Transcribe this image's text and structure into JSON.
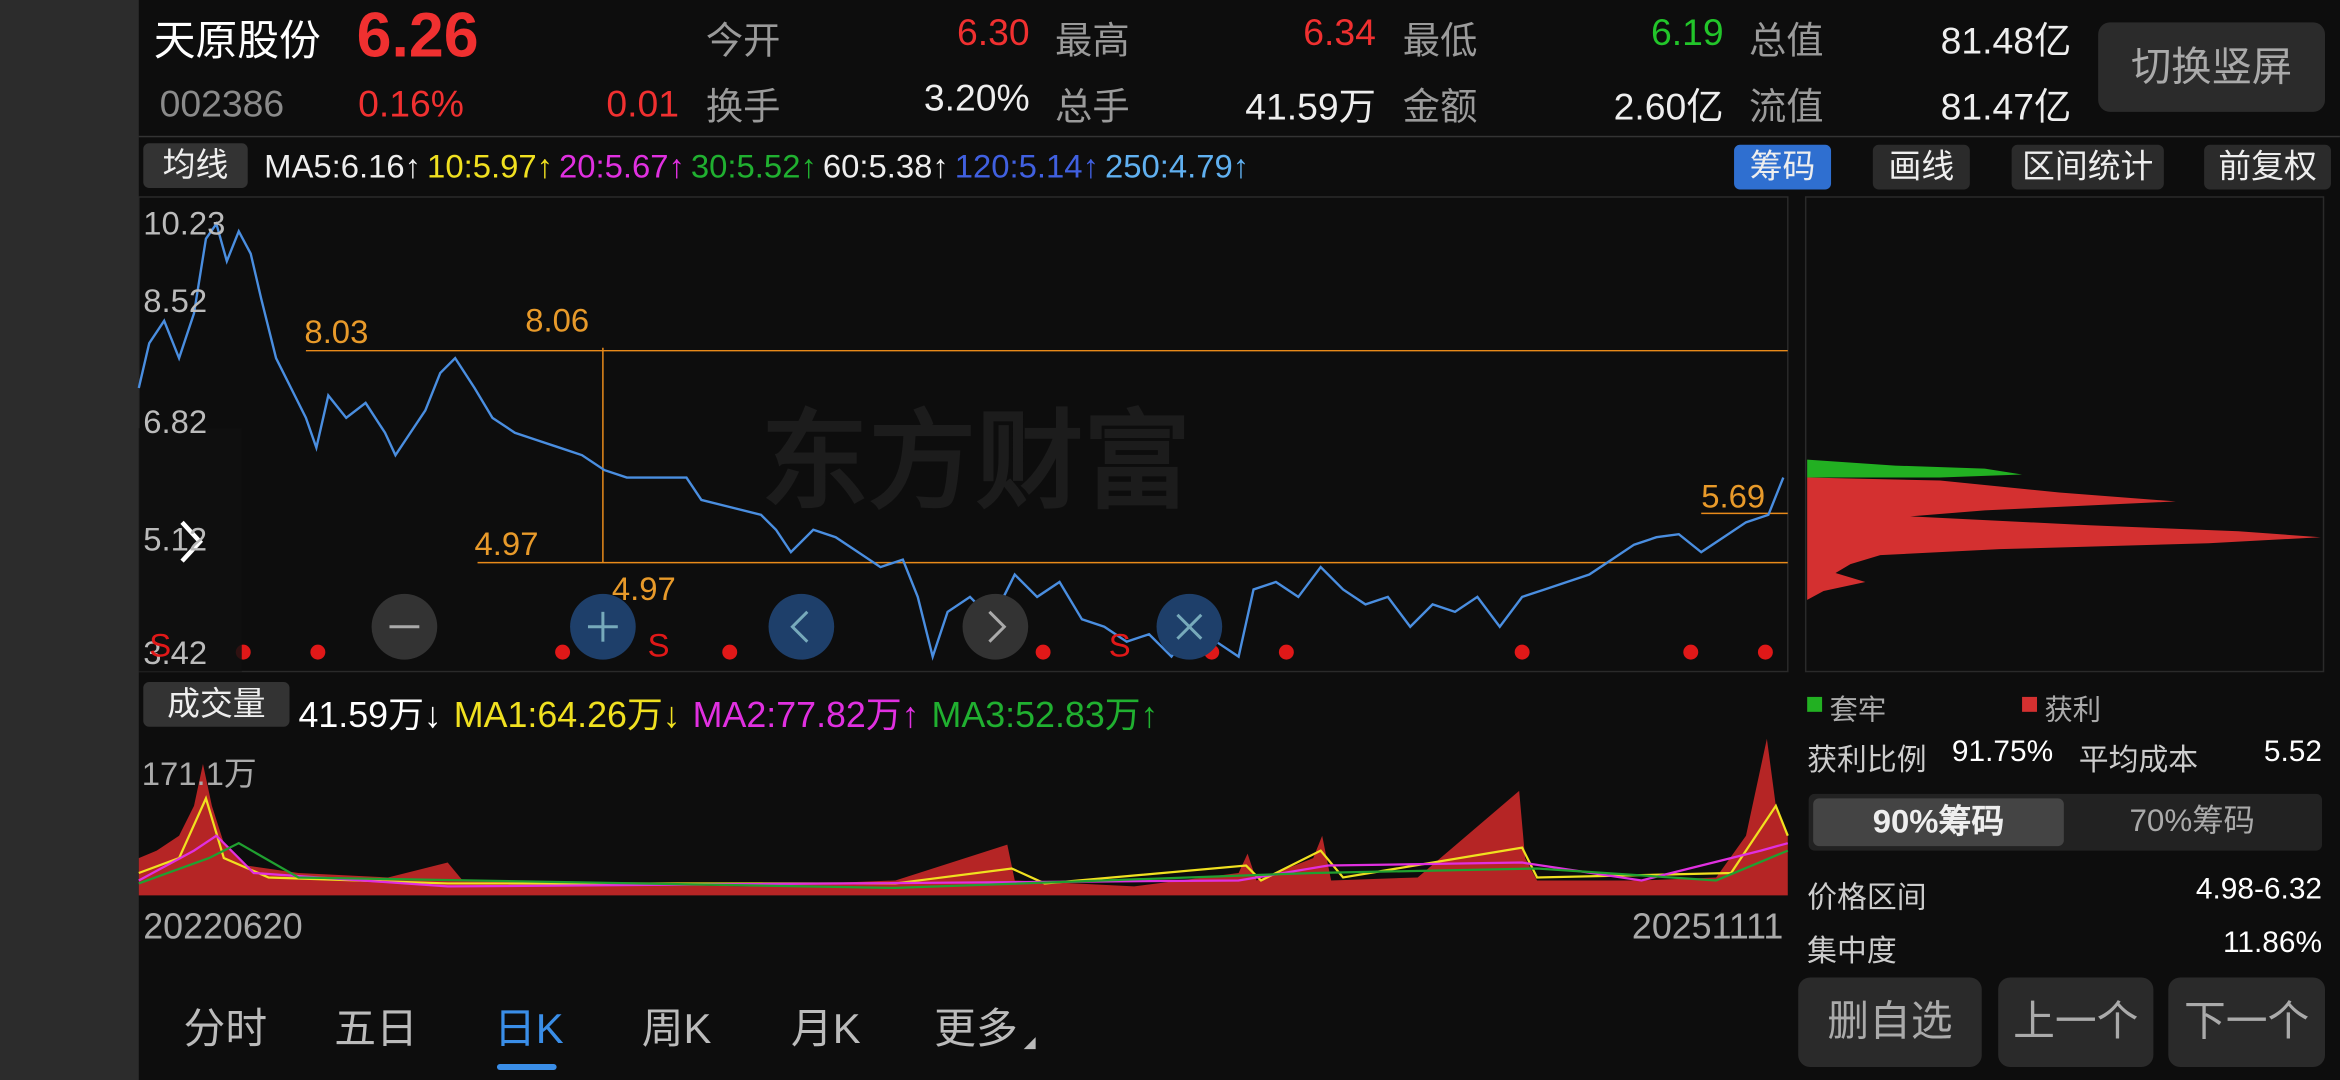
{
  "header": {
    "name": "天原股份",
    "price": "6.26",
    "code": "002386",
    "change_pct": "0.16%",
    "change": "0.01",
    "stats": [
      {
        "label": "今开",
        "value": "6.30"
      },
      {
        "label": "最高",
        "value": "6.34"
      },
      {
        "label": "最低",
        "value": "6.19"
      },
      {
        "label": "总值",
        "value": "81.48亿"
      },
      {
        "label": "换手",
        "value": "3.20%"
      },
      {
        "label": "总手",
        "value": "41.59万"
      },
      {
        "label": "金额",
        "value": "2.60亿"
      },
      {
        "label": "流值",
        "value": "81.47亿"
      }
    ],
    "switch_button": "切换竖屏"
  },
  "ma_bar": {
    "label": "均线",
    "items": [
      "MA5:6.16↑",
      "10:5.97↑",
      "20:5.67↑",
      "30:5.52↑",
      "60:5.38↑",
      "120:5.14↑",
      "250:4.79↑"
    ]
  },
  "tools": [
    "筹码",
    "画线",
    "区间统计",
    "前复权"
  ],
  "price_chart": {
    "watermark": "东方财富",
    "axis_labels": [
      "10.23",
      "8.52",
      "6.82",
      "5.12",
      "3.42"
    ],
    "annotations": [
      "8.03",
      "8.06",
      "4.97",
      "4.97",
      "5.69"
    ],
    "signals": [
      "S",
      "S",
      "S"
    ]
  },
  "volume_bar": {
    "label": "成交量",
    "items": [
      "41.59万↓",
      "MA1:64.26万↓",
      "MA2:77.82万↑",
      "MA3:52.83万↑"
    ],
    "axis_label": "171.1万",
    "start_date": "20220620",
    "end_date": "20251111"
  },
  "tabs": [
    "分时",
    "五日",
    "日K",
    "周K",
    "月K",
    "更多"
  ],
  "chips": {
    "legend": [
      "套牢",
      "获利"
    ],
    "profit_ratio": {
      "label": "获利比例",
      "value": "91.75%"
    },
    "avg_cost": {
      "label": "平均成本",
      "value": "5.52"
    },
    "toggle": [
      "90%筹码",
      "70%筹码"
    ],
    "price_range": {
      "label": "价格区间",
      "value": "4.98-6.32"
    },
    "concentration": {
      "label": "集中度",
      "value": "11.86%"
    }
  },
  "buttons": [
    "删自选",
    "上一个",
    "下一个"
  ]
}
